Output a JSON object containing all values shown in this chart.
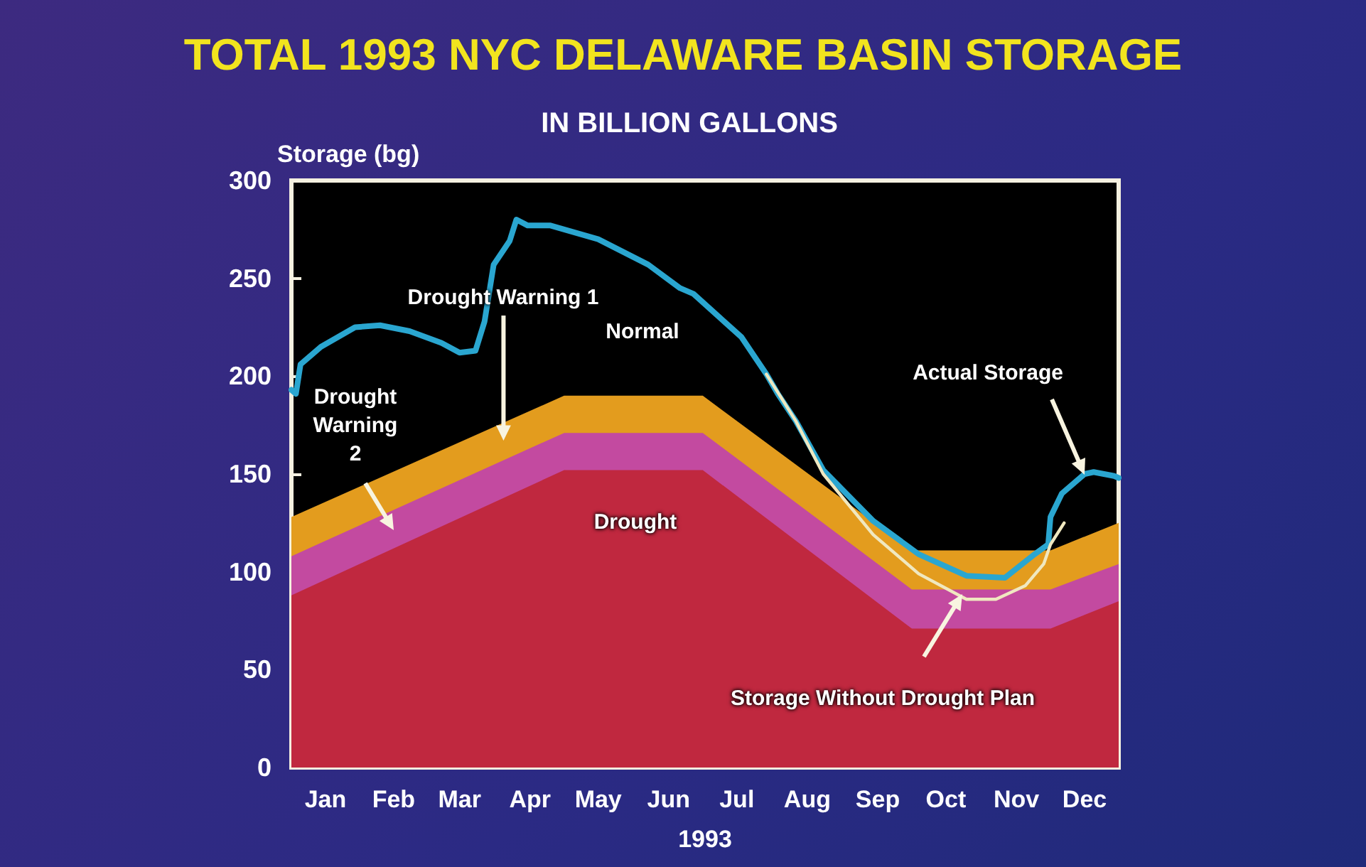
{
  "chart_data": {
    "type": "area",
    "title": "TOTAL 1993 NYC DELAWARE BASIN STORAGE",
    "subtitle": "IN BILLION GALLONS",
    "ylabel": "Storage (bg)",
    "xlabel": "1993",
    "stacked": true,
    "xlim": [
      "1993-01-01",
      "1993-12-31"
    ],
    "ylim": [
      0,
      300
    ],
    "xticks": [
      {
        "value": "1993-01-16",
        "label": "Jan"
      },
      {
        "value": "1993-02-15",
        "label": "Feb"
      },
      {
        "value": "1993-03-16",
        "label": "Mar"
      },
      {
        "value": "1993-04-16",
        "label": "Apr"
      },
      {
        "value": "1993-05-16",
        "label": "May"
      },
      {
        "value": "1993-06-16",
        "label": "Jun"
      },
      {
        "value": "1993-07-16",
        "label": "Jul"
      },
      {
        "value": "1993-08-16",
        "label": "Aug"
      },
      {
        "value": "1993-09-16",
        "label": "Sep"
      },
      {
        "value": "1993-10-16",
        "label": "Oct"
      },
      {
        "value": "1993-11-16",
        "label": "Nov"
      },
      {
        "value": "1993-12-16",
        "label": "Dec"
      }
    ],
    "yticks": [
      0,
      50,
      100,
      150,
      200,
      250,
      300
    ],
    "grid": false,
    "marker": "none",
    "line_style": "solid",
    "series": [
      {
        "color": "#c0283f",
        "x": [
          "1993-01-01",
          "1993-05-01",
          "1993-07-01",
          "1993-10-01",
          "1993-12-01",
          "1993-12-31"
        ],
        "values": [
          88,
          152,
          152,
          71,
          71,
          85
        ]
      },
      {
        "color": "#c34aa0",
        "x": [
          "1993-01-01",
          "1993-05-01",
          "1993-07-01",
          "1993-10-01",
          "1993-12-01",
          "1993-12-31"
        ],
        "values": [
          20,
          19,
          19,
          20,
          20,
          19
        ]
      },
      {
        "color": "#e39c1e",
        "x": [
          "1993-01-01",
          "1993-05-01",
          "1993-07-01",
          "1993-10-01",
          "1993-12-01",
          "1993-12-31"
        ],
        "values": [
          20,
          19,
          19,
          20,
          20,
          21
        ]
      },
      {
        "type": "line",
        "color": "#2aa6d0",
        "x": [
          "1993-01-01",
          "1993-01-03",
          "1993-01-05",
          "1993-01-14",
          "1993-01-29",
          "1993-02-09",
          "1993-02-22",
          "1993-03-08",
          "1993-03-16",
          "1993-03-23",
          "1993-03-27",
          "1993-03-31",
          "1993-04-07",
          "1993-04-10",
          "1993-04-15",
          "1993-04-25",
          "1993-05-16",
          "1993-06-07",
          "1993-06-21",
          "1993-06-27",
          "1993-07-18",
          "1993-07-29",
          "1993-08-03",
          "1993-08-11",
          "1993-08-23",
          "1993-09-14",
          "1993-10-04",
          "1993-10-25",
          "1993-11-11",
          "1993-11-24",
          "1993-11-30",
          "1993-12-01",
          "1993-12-06",
          "1993-12-16",
          "1993-12-20",
          "1993-12-29",
          "1993-12-31"
        ],
        "values": [
          193,
          191,
          206,
          215,
          225,
          226,
          223,
          217,
          212,
          213,
          228,
          257,
          269,
          280,
          277,
          277,
          270,
          257,
          245,
          242,
          220,
          201,
          191,
          177,
          152,
          126,
          109,
          98,
          97,
          109,
          114,
          128,
          140,
          150,
          151,
          149,
          148
        ]
      },
      {
        "type": "line",
        "color": "#f0e8c0",
        "x": [
          "1993-07-29",
          "1993-08-11",
          "1993-08-23",
          "1993-09-14",
          "1993-10-04",
          "1993-10-25",
          "1993-11-07",
          "1993-11-20",
          "1993-11-28",
          "1993-12-01",
          "1993-12-07"
        ],
        "values": [
          201,
          177,
          150,
          119,
          99,
          86,
          86,
          93,
          104,
          114,
          125
        ]
      }
    ],
    "annotations": [
      "Normal",
      "Drought Warning 1",
      "Drought Warning 2",
      "Drought",
      {
        "text": "Actual Storage",
        "x": "1993-12-16",
        "y": 150
      },
      "Storage Without Drought Plan"
    ]
  }
}
